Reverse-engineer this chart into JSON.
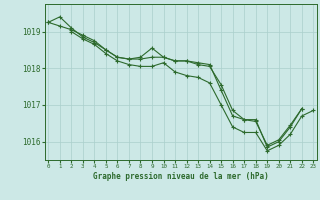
{
  "title": "Graphe pression niveau de la mer (hPa)",
  "background_color": "#cce8e6",
  "grid_color": "#aacfcc",
  "line_color": "#2d6a2d",
  "hours": [
    0,
    1,
    2,
    3,
    4,
    5,
    6,
    7,
    8,
    9,
    10,
    11,
    12,
    13,
    14,
    15,
    16,
    17,
    18,
    19,
    20,
    21,
    22,
    23
  ],
  "series1": [
    1019.25,
    1019.4,
    1019.1,
    1018.85,
    1018.7,
    1018.5,
    1018.3,
    1018.25,
    1018.3,
    1018.55,
    1018.3,
    1018.2,
    1018.2,
    1018.15,
    1018.1,
    1017.4,
    1016.7,
    1016.6,
    1016.6,
    1015.85,
    1016.0,
    1016.4,
    1016.9,
    null
  ],
  "series2": [
    1019.25,
    1019.15,
    1019.05,
    1018.9,
    1018.75,
    1018.5,
    1018.3,
    1018.25,
    1018.25,
    1018.3,
    1018.3,
    1018.2,
    1018.2,
    1018.1,
    1018.05,
    1017.55,
    1016.85,
    1016.6,
    1016.55,
    1015.9,
    1016.05,
    1016.45,
    1016.9,
    null
  ],
  "series3": [
    null,
    null,
    1019.0,
    1018.8,
    1018.65,
    1018.4,
    1018.2,
    1018.1,
    1018.05,
    1018.05,
    1018.15,
    1017.9,
    1017.8,
    1017.75,
    1017.6,
    1017.0,
    1016.4,
    1016.25,
    1016.25,
    1015.75,
    1015.9,
    1016.2,
    1016.7,
    1016.85
  ],
  "ylim": [
    1015.5,
    1019.75
  ],
  "yticks": [
    1016,
    1017,
    1018,
    1019
  ],
  "xlim": [
    -0.3,
    23.3
  ]
}
